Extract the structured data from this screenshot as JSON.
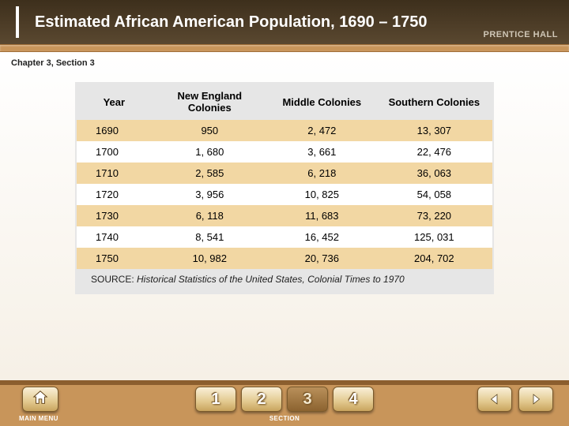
{
  "header": {
    "title": "Estimated African American Population, 1690 – 1750",
    "brand": "PRENTICE HALL"
  },
  "chapter_label": "Chapter 3, Section 3",
  "table": {
    "columns": [
      "Year",
      "New England Colonies",
      "Middle Colonies",
      "Southern Colonies"
    ],
    "rows": [
      [
        "1690",
        "950",
        "2, 472",
        "13, 307"
      ],
      [
        "1700",
        "1, 680",
        "3, 661",
        "22, 476"
      ],
      [
        "1710",
        "2, 585",
        "6, 218",
        "36, 063"
      ],
      [
        "1720",
        "3, 956",
        "10, 825",
        "54, 058"
      ],
      [
        "1730",
        "6, 118",
        "11, 683",
        "73, 220"
      ],
      [
        "1740",
        "8, 541",
        "16, 452",
        "125, 031"
      ],
      [
        "1750",
        "10, 982",
        "20, 736",
        "204, 702"
      ]
    ],
    "col_widths": [
      "18%",
      "28%",
      "26%",
      "28%"
    ],
    "row_colors": {
      "odd": "#f2d7a3",
      "even": "#ffffff"
    },
    "header_bg": "#e6e6e6",
    "font_size": 13
  },
  "source": {
    "label": "SOURCE: ",
    "citation": "Historical Statistics of the United States, Colonial Times to 1970"
  },
  "footer": {
    "home_label": "MAIN MENU",
    "section_label": "SECTION",
    "tabs": [
      "1",
      "2",
      "3",
      "4"
    ],
    "active_tab_index": 2
  },
  "colors": {
    "header_bg": "#4a3c28",
    "accent_band": "#c8955a",
    "content_bg": "#ffffff",
    "footer_bg": "#c8955a",
    "footer_border": "#8b5e2e"
  }
}
